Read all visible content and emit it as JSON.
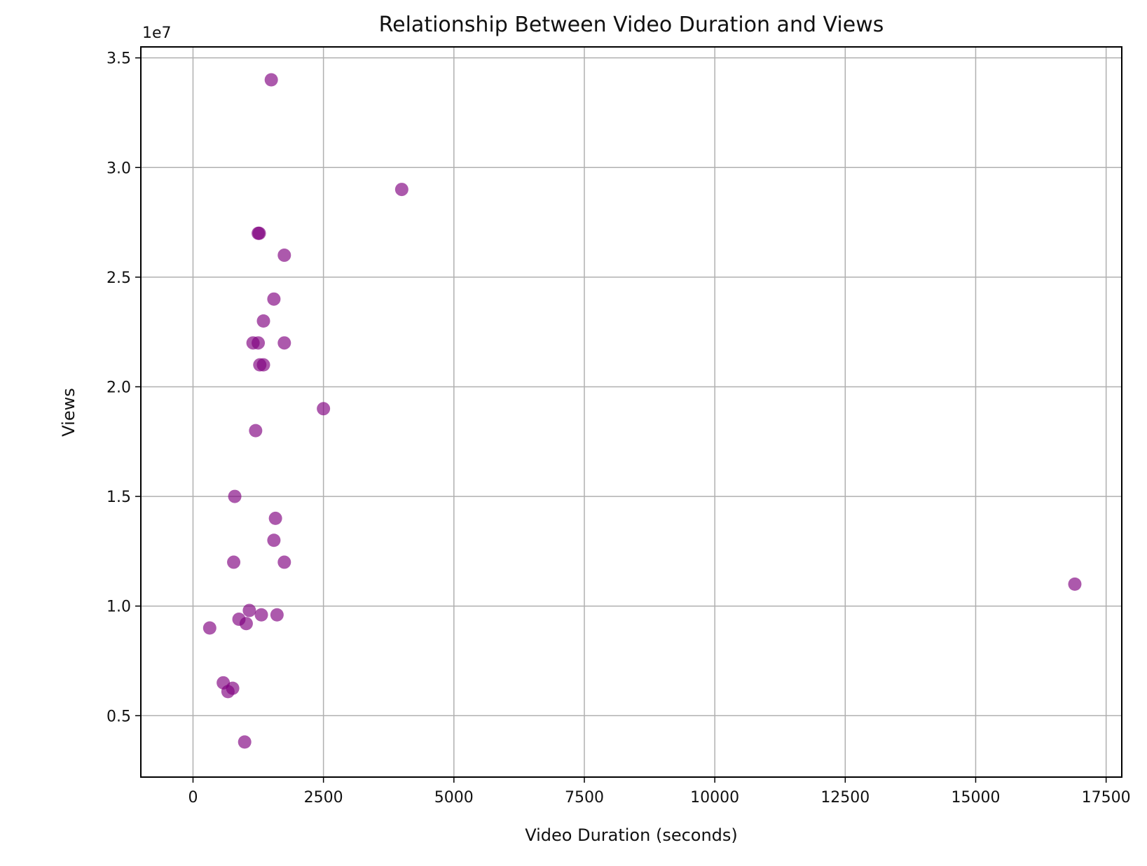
{
  "chart_data": {
    "type": "scatter",
    "title": "Relationship Between Video Duration and Views",
    "xlabel": "Video Duration (seconds)",
    "ylabel": "Views",
    "y_offset_text": "1e7",
    "xlim": [
      -1000,
      17800
    ],
    "ylim": [
      2200000,
      35500000
    ],
    "x_ticks": [
      0,
      2500,
      5000,
      7500,
      10000,
      12500,
      15000,
      17500
    ],
    "x_tick_labels": [
      "0",
      "2500",
      "5000",
      "7500",
      "10000",
      "12500",
      "15000",
      "17500"
    ],
    "y_ticks": [
      5000000,
      10000000,
      15000000,
      20000000,
      25000000,
      30000000,
      35000000
    ],
    "y_tick_labels": [
      "0.5",
      "1.0",
      "1.5",
      "2.0",
      "2.5",
      "3.0",
      "3.5"
    ],
    "grid": true,
    "marker_color": "#800080",
    "marker_alpha": 0.65,
    "points": [
      {
        "x": 1500,
        "y": 34000000
      },
      {
        "x": 4000,
        "y": 29000000
      },
      {
        "x": 1250,
        "y": 27000000
      },
      {
        "x": 1270,
        "y": 27000000
      },
      {
        "x": 1750,
        "y": 26000000
      },
      {
        "x": 1550,
        "y": 24000000
      },
      {
        "x": 1350,
        "y": 23000000
      },
      {
        "x": 1150,
        "y": 22000000
      },
      {
        "x": 1250,
        "y": 22000000
      },
      {
        "x": 1750,
        "y": 22000000
      },
      {
        "x": 1280,
        "y": 21000000
      },
      {
        "x": 1350,
        "y": 21000000
      },
      {
        "x": 2500,
        "y": 19000000
      },
      {
        "x": 1200,
        "y": 18000000
      },
      {
        "x": 800,
        "y": 15000000
      },
      {
        "x": 1580,
        "y": 14000000
      },
      {
        "x": 1550,
        "y": 13000000
      },
      {
        "x": 780,
        "y": 12000000
      },
      {
        "x": 1750,
        "y": 12000000
      },
      {
        "x": 16900,
        "y": 11000000
      },
      {
        "x": 1080,
        "y": 9800000
      },
      {
        "x": 1310,
        "y": 9600000
      },
      {
        "x": 1610,
        "y": 9600000
      },
      {
        "x": 880,
        "y": 9400000
      },
      {
        "x": 1020,
        "y": 9200000
      },
      {
        "x": 320,
        "y": 9000000
      },
      {
        "x": 580,
        "y": 6500000
      },
      {
        "x": 760,
        "y": 6250000
      },
      {
        "x": 670,
        "y": 6100000
      },
      {
        "x": 990,
        "y": 3800000
      }
    ]
  }
}
